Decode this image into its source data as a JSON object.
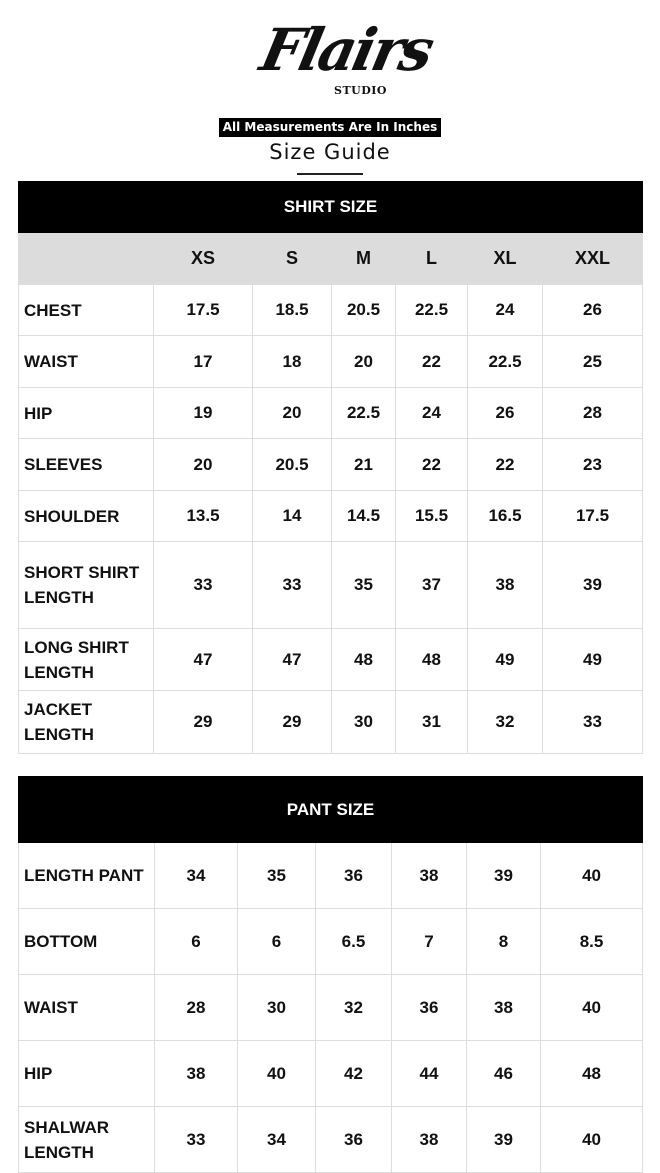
{
  "brand": {
    "name": "Flairs",
    "sub": "STUDIO"
  },
  "note": "All Measurements Are In Inches",
  "title": "Size Guide",
  "shirt": {
    "heading": "SHIRT SIZE",
    "sizes": [
      "XS",
      "S",
      "M",
      "L",
      "XL",
      "XXL"
    ],
    "rows": [
      {
        "label": "CHEST",
        "values": [
          "17.5",
          "18.5",
          "20.5",
          "22.5",
          "24",
          "26"
        ]
      },
      {
        "label": "WAIST",
        "values": [
          "17",
          "18",
          "20",
          "22",
          "22.5",
          "25"
        ]
      },
      {
        "label": "HIP",
        "values": [
          "19",
          "20",
          "22.5",
          "24",
          "26",
          "28"
        ]
      },
      {
        "label": "SLEEVES",
        "values": [
          "20",
          "20.5",
          "21",
          "22",
          "22",
          "23"
        ]
      },
      {
        "label": "SHOULDER",
        "values": [
          "13.5",
          "14",
          "14.5",
          "15.5",
          "16.5",
          "17.5"
        ]
      },
      {
        "label": "SHORT SHIRT LENGTH",
        "values": [
          "33",
          "33",
          "35",
          "37",
          "38",
          "39"
        ]
      },
      {
        "label": "LONG SHIRT LENGTH",
        "values": [
          "47",
          "47",
          "48",
          "48",
          "49",
          "49"
        ]
      },
      {
        "label": "JACKET LENGTH",
        "values": [
          "29",
          "29",
          "30",
          "31",
          "32",
          "33"
        ]
      }
    ]
  },
  "pant": {
    "heading": "PANT SIZE",
    "rows": [
      {
        "label": "LENGTH PANT",
        "values": [
          "34",
          "35",
          "36",
          "38",
          "39",
          "40"
        ]
      },
      {
        "label": "BOTTOM",
        "values": [
          "6",
          "6",
          "6.5",
          "7",
          "8",
          "8.5"
        ]
      },
      {
        "label": "WAIST",
        "values": [
          "28",
          "30",
          "32",
          "36",
          "38",
          "40"
        ]
      },
      {
        "label": "HIP",
        "values": [
          "38",
          "40",
          "42",
          "44",
          "46",
          "48"
        ]
      },
      {
        "label": "SHALWAR LENGTH",
        "values": [
          "33",
          "34",
          "36",
          "38",
          "39",
          "40"
        ]
      }
    ]
  }
}
